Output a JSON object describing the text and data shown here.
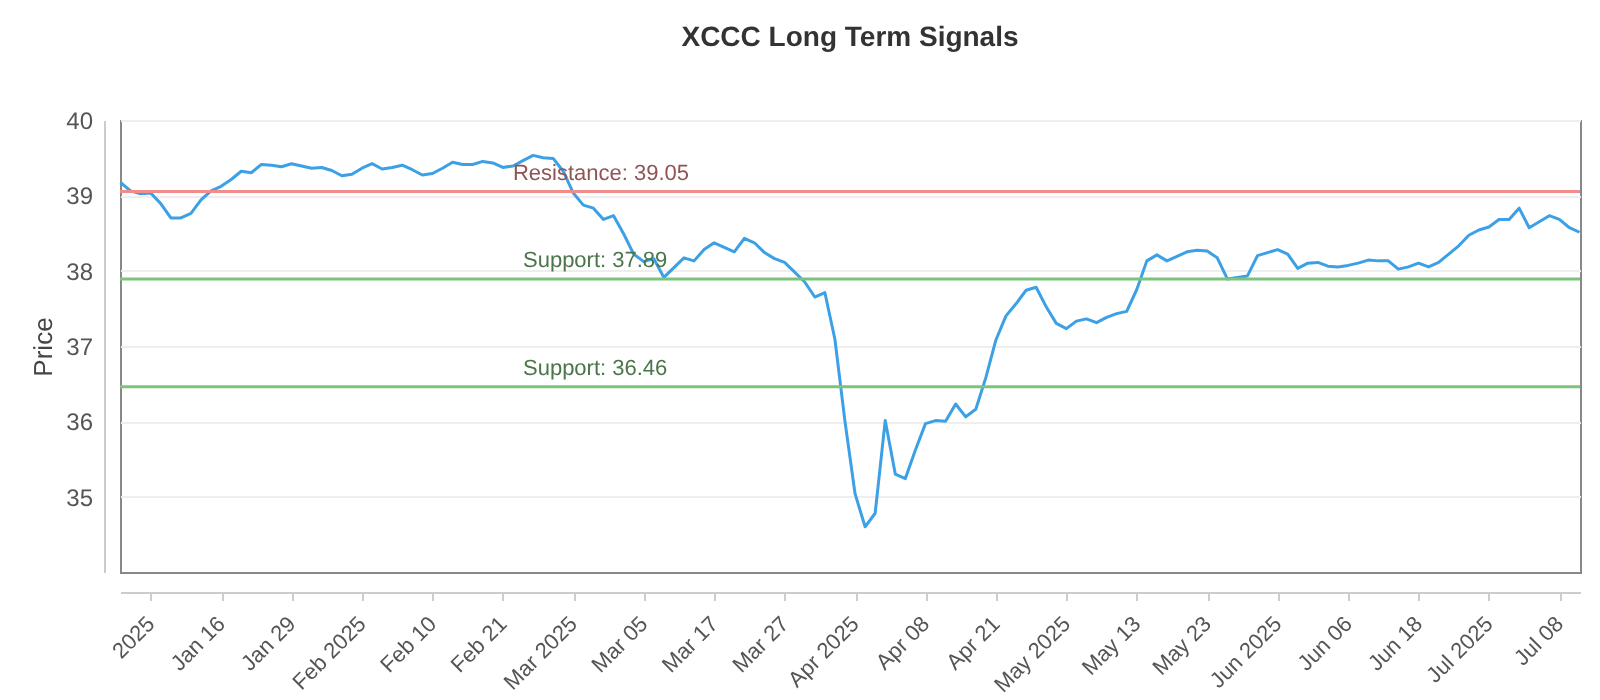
{
  "chart_data": {
    "type": "line",
    "title": "XCCC Long Term Signals",
    "ylabel": "Price",
    "categories": [
      null,
      null,
      null,
      "2025",
      null,
      null,
      null,
      null,
      null,
      null,
      "Jan 16",
      null,
      null,
      null,
      null,
      null,
      null,
      "Jan 29",
      null,
      null,
      null,
      null,
      null,
      null,
      "Feb 2025",
      null,
      null,
      null,
      null,
      null,
      null,
      "Feb 10",
      null,
      null,
      null,
      null,
      null,
      null,
      "Feb 21",
      null,
      null,
      null,
      null,
      null,
      null,
      "Mar 2025",
      null,
      null,
      null,
      null,
      null,
      null,
      "Mar 05",
      null,
      null,
      null,
      null,
      null,
      null,
      "Mar 17",
      null,
      null,
      null,
      null,
      null,
      null,
      "Mar 27",
      null,
      null,
      null,
      null,
      null,
      null,
      "Apr 2025",
      null,
      null,
      null,
      null,
      null,
      null,
      "Apr 08",
      null,
      null,
      null,
      null,
      null,
      null,
      "Apr 21",
      null,
      null,
      null,
      null,
      null,
      null,
      "May 2025",
      null,
      null,
      null,
      null,
      null,
      null,
      "May 13",
      null,
      null,
      null,
      null,
      null,
      null,
      "May 23",
      null,
      null,
      null,
      null,
      null,
      null,
      "Jun 2025",
      null,
      null,
      null,
      null,
      null,
      null,
      "Jun 06",
      null,
      null,
      null,
      null,
      null,
      null,
      "Jun 18",
      null,
      null,
      null,
      null,
      null,
      null,
      "Jul 2025",
      null,
      null,
      null,
      null,
      null,
      null,
      "Jul 08",
      null,
      null
    ],
    "series": [
      {
        "color": "#3ca0e6",
        "values": [
          39.17,
          39.06,
          39.02,
          39.03,
          38.89,
          38.7,
          38.7,
          38.76,
          38.94,
          39.06,
          39.12,
          39.21,
          39.32,
          39.3,
          39.41,
          39.4,
          39.38,
          39.42,
          39.39,
          39.36,
          39.37,
          39.33,
          39.26,
          39.28,
          39.36,
          39.42,
          39.35,
          39.37,
          39.4,
          39.34,
          39.27,
          39.29,
          39.36,
          39.44,
          39.41,
          39.41,
          39.45,
          39.43,
          39.37,
          39.39,
          39.46,
          39.53,
          39.5,
          39.49,
          39.32,
          39.03,
          38.87,
          38.83,
          38.68,
          38.73,
          38.49,
          38.22,
          38.12,
          38.16,
          37.91,
          38.04,
          38.17,
          38.13,
          38.28,
          38.37,
          38.31,
          38.25,
          38.43,
          38.37,
          38.24,
          38.16,
          38.11,
          37.98,
          37.85,
          37.65,
          37.71,
          37.09,
          36.0,
          35.04,
          34.6,
          34.78,
          36.01,
          35.3,
          35.24,
          35.62,
          35.97,
          36.01,
          36.0,
          36.23,
          36.06,
          36.16,
          36.58,
          37.08,
          37.4,
          37.56,
          37.74,
          37.78,
          37.52,
          37.3,
          37.23,
          37.33,
          37.36,
          37.31,
          37.38,
          37.43,
          37.46,
          37.75,
          38.13,
          38.21,
          38.13,
          38.19,
          38.25,
          38.27,
          38.26,
          38.17,
          37.89,
          37.91,
          37.93,
          38.2,
          38.24,
          38.28,
          38.22,
          38.03,
          38.1,
          38.11,
          38.06,
          38.05,
          38.07,
          38.1,
          38.14,
          38.13,
          38.13,
          38.02,
          38.05,
          38.1,
          38.05,
          38.11,
          38.22,
          38.33,
          38.47,
          38.54,
          38.58,
          38.68,
          38.68,
          38.83,
          38.57,
          38.65,
          38.73,
          38.68,
          38.57,
          38.51
        ]
      }
    ],
    "ylim": [
      34,
      40
    ],
    "yticks": [
      35,
      36,
      37,
      38,
      39,
      40
    ],
    "grid": "y",
    "ref_lines": [
      {
        "axis": "y",
        "value": 39.05,
        "label": "Resistance: 39.05",
        "color": "#f08c8c"
      },
      {
        "axis": "y",
        "value": 37.89,
        "label": "Support: 37.89",
        "color": "#7cc47c"
      },
      {
        "axis": "y",
        "value": 36.46,
        "label": "Support: 36.46",
        "color": "#7cc47c"
      }
    ]
  }
}
